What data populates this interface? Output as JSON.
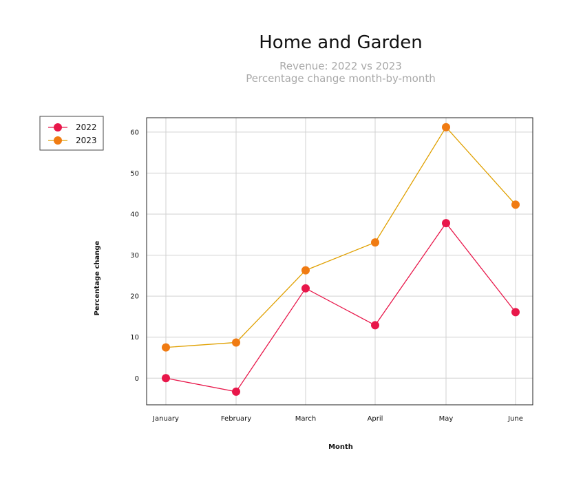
{
  "chart_data": {
    "type": "line",
    "title": "Home and Garden",
    "subtitle_lines": [
      "Revenue: 2022 vs 2023",
      "Percentage change month-by-month"
    ],
    "xlabel": "Month",
    "ylabel": "Percentage change",
    "categories": [
      "January",
      "February",
      "March",
      "April",
      "May",
      "June"
    ],
    "y_ticks": [
      0,
      10,
      20,
      30,
      40,
      50,
      60
    ],
    "ylim": [
      -6.5,
      63.5
    ],
    "grid": true,
    "legend_position": "top-left, outside plot",
    "series": [
      {
        "name": "2022",
        "color": "#e8174a",
        "values": [
          0,
          -3.3,
          21.9,
          12.9,
          37.8,
          16.1
        ]
      },
      {
        "name": "2023",
        "color": "#f07b12",
        "line_color": "#e0a000",
        "values": [
          7.5,
          8.7,
          26.3,
          33.1,
          61.2,
          42.3
        ]
      }
    ]
  }
}
